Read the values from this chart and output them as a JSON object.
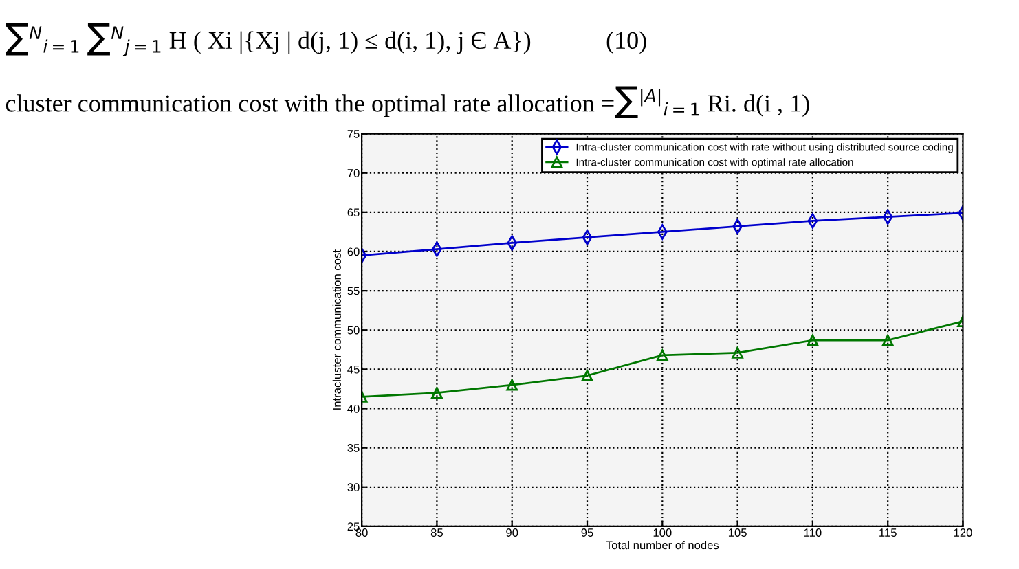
{
  "chart_data": {
    "type": "line",
    "annotations": [
      "∑$^{N}$$_{i=1}$ ∑$^{N}$$_{j=1}$ H ( Xi |{Xj | d(j, 1) ≤ d(i, 1), j Є A})            (10)",
      "cluster communication cost with the optimal rate allocation =∑$^{|A|}$$_{i=1}$ Ri. d(i , 1)"
    ],
    "xlabel": "Total number of nodes",
    "ylabel": "Intracluster communication cost",
    "x": [
      80,
      85,
      90,
      95,
      100,
      105,
      110,
      115,
      120
    ],
    "series": [
      {
        "name": "Intra-cluster communication cost with rate without using distributed source coding",
        "color": "#0000cc",
        "marker": "diamond",
        "values": [
          59.5,
          60.3,
          61.1,
          61.8,
          62.5,
          63.2,
          63.9,
          64.4,
          64.9
        ]
      },
      {
        "name": "Intra-cluster communication cost with optimal rate allocation",
        "color": "#007700",
        "marker": "triangle",
        "values": [
          41.5,
          42.0,
          43.0,
          44.2,
          46.8,
          47.1,
          48.7,
          48.7,
          51.1
        ]
      }
    ],
    "xlim": [
      80,
      120
    ],
    "xticks": [
      80,
      85,
      90,
      95,
      100,
      105,
      110,
      115,
      120
    ],
    "ylim": [
      25,
      75
    ],
    "yticks": [
      25,
      30,
      35,
      40,
      45,
      50,
      55,
      60,
      65,
      70,
      75
    ],
    "grid": true,
    "legend": "top right",
    "line_style": "solid"
  }
}
